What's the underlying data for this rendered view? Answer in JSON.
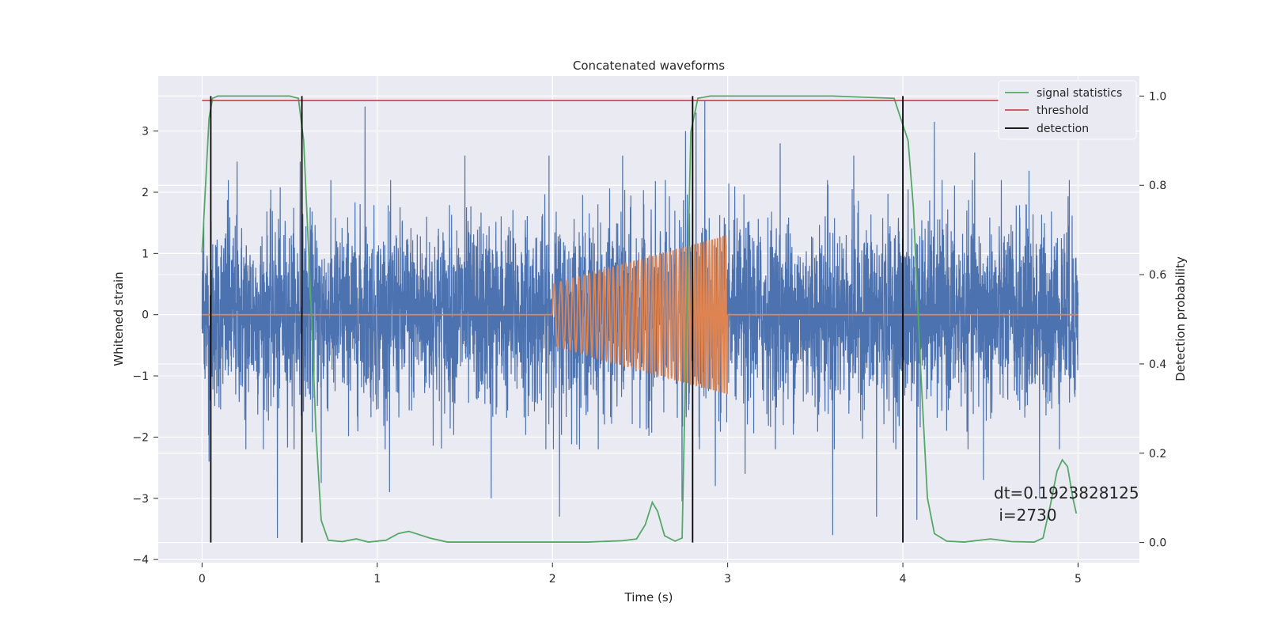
{
  "chart_data": {
    "type": "line",
    "title": "Concatenated waveforms",
    "xlabel": "Time (s)",
    "ylabel": "Whitened strain",
    "y2label": "Detection probability",
    "xlim": [
      -0.25,
      5.35
    ],
    "ylim": [
      -4.05,
      3.9
    ],
    "y2lim": [
      -0.045,
      1.045
    ],
    "xticks": [
      "0",
      "1",
      "2",
      "3",
      "4",
      "5"
    ],
    "yticks": [
      "3",
      "2",
      "1",
      "0",
      "−1",
      "−2",
      "−3",
      "−4"
    ],
    "y2ticks": [
      "1.0",
      "0.8",
      "0.6",
      "0.4",
      "0.2",
      "0.0"
    ],
    "grid": true,
    "legend_position": "top-right",
    "colors": {
      "strain": "#4c72b0",
      "template": "#dd8452",
      "signal_statistics": "#55a868",
      "threshold": "#c44e52",
      "detection": "#000000",
      "background": "#eaeaf2"
    },
    "strain": {
      "x_range": [
        0,
        5
      ],
      "typical_amplitude": 0.75,
      "peak_values": [
        {
          "x": 0.01,
          "y": 1.5
        },
        {
          "x": 0.04,
          "y": -2.4
        },
        {
          "x": 0.15,
          "y": 2.2
        },
        {
          "x": 0.2,
          "y": 2.5
        },
        {
          "x": 0.25,
          "y": -2.2
        },
        {
          "x": 0.43,
          "y": -3.65
        },
        {
          "x": 0.56,
          "y": 2.5
        },
        {
          "x": 0.68,
          "y": -2.75
        },
        {
          "x": 0.93,
          "y": 3.4
        },
        {
          "x": 1.07,
          "y": -2.9
        },
        {
          "x": 1.5,
          "y": 2.6
        },
        {
          "x": 1.65,
          "y": -3.0
        },
        {
          "x": 1.98,
          "y": 2.6
        },
        {
          "x": 2.04,
          "y": -3.3
        },
        {
          "x": 2.4,
          "y": 2.6
        },
        {
          "x": 2.74,
          "y": -3.05
        },
        {
          "x": 2.76,
          "y": 3.0
        },
        {
          "x": 2.82,
          "y": 3.3
        },
        {
          "x": 2.87,
          "y": 3.5
        },
        {
          "x": 2.93,
          "y": -2.8
        },
        {
          "x": 3.1,
          "y": -2.6
        },
        {
          "x": 3.3,
          "y": 2.8
        },
        {
          "x": 3.57,
          "y": 2.2
        },
        {
          "x": 3.6,
          "y": -3.6
        },
        {
          "x": 3.72,
          "y": 2.6
        },
        {
          "x": 3.85,
          "y": -3.3
        },
        {
          "x": 4.0,
          "y": -3.25
        },
        {
          "x": 4.08,
          "y": -3.35
        },
        {
          "x": 4.18,
          "y": 3.15
        },
        {
          "x": 4.41,
          "y": 2.65
        },
        {
          "x": 4.46,
          "y": -2.7
        },
        {
          "x": 4.72,
          "y": 2.35
        },
        {
          "x": 4.78,
          "y": -3.0
        },
        {
          "x": 4.95,
          "y": 2.2
        }
      ]
    },
    "template": {
      "flat_ranges": [
        [
          0,
          2
        ],
        [
          3,
          5
        ]
      ],
      "chirp_x_range": [
        2,
        3
      ],
      "chirp_amplitude_start": 0.5,
      "chirp_amplitude_end": 1.3,
      "chirp_cycles": 46
    },
    "signal_statistics": {
      "x": [
        0.0,
        0.02,
        0.04,
        0.06,
        0.09,
        0.15,
        0.3,
        0.5,
        0.55,
        0.58,
        0.62,
        0.65,
        0.68,
        0.72,
        0.8,
        0.88,
        0.95,
        1.05,
        1.12,
        1.18,
        1.22,
        1.3,
        1.4,
        1.6,
        1.8,
        2.0,
        2.2,
        2.4,
        2.48,
        2.53,
        2.57,
        2.6,
        2.64,
        2.7,
        2.74,
        2.76,
        2.79,
        2.83,
        2.9,
        3.2,
        3.6,
        3.95,
        4.03,
        4.06,
        4.1,
        4.14,
        4.18,
        4.25,
        4.35,
        4.5,
        4.62,
        4.75,
        4.8,
        4.84,
        4.88,
        4.91,
        4.94,
        4.97,
        4.99
      ],
      "y": [
        0.65,
        0.8,
        0.95,
        0.995,
        1.0,
        1.0,
        1.0,
        1.0,
        0.995,
        0.9,
        0.55,
        0.25,
        0.05,
        0.005,
        0.002,
        0.008,
        0.001,
        0.005,
        0.02,
        0.025,
        0.02,
        0.01,
        0.001,
        0.001,
        0.001,
        0.001,
        0.001,
        0.004,
        0.008,
        0.04,
        0.09,
        0.07,
        0.015,
        0.003,
        0.01,
        0.4,
        0.92,
        0.995,
        1.0,
        1.0,
        1.0,
        0.995,
        0.9,
        0.75,
        0.4,
        0.1,
        0.02,
        0.003,
        0.001,
        0.008,
        0.002,
        0.001,
        0.01,
        0.08,
        0.16,
        0.185,
        0.17,
        0.1,
        0.065
      ]
    },
    "threshold": {
      "value": 0.99,
      "x_range": [
        0,
        5
      ]
    },
    "detections": [
      0.05,
      0.57,
      2.8,
      4.0
    ],
    "detection_range": [
      0,
      1
    ],
    "legend": [
      "signal statistics",
      "threshold",
      "detection"
    ],
    "annotation": {
      "line1": "dt=0.1923828125",
      "line2": " i=2730"
    }
  }
}
